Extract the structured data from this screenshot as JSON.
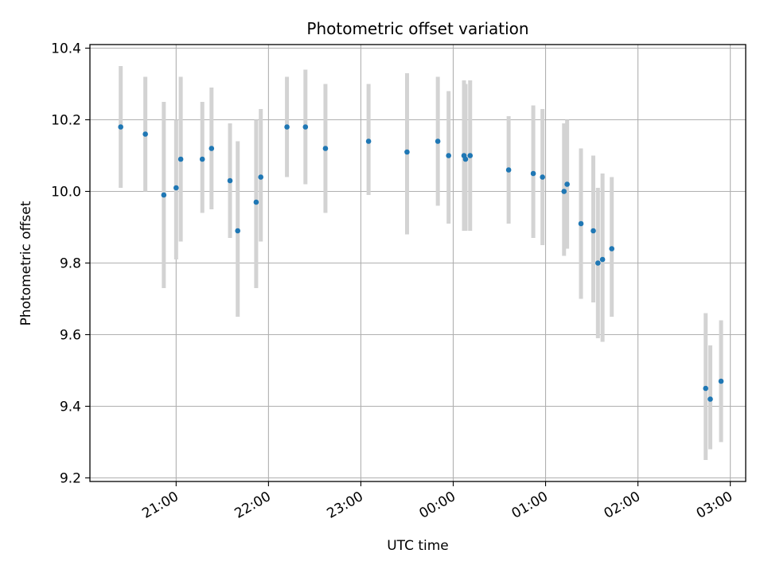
{
  "chart_data": {
    "type": "scatter",
    "title": "Photometric offset variation",
    "xlabel": "UTC time",
    "ylabel": "Photometric offset",
    "x_axis_type": "time",
    "xlim": [
      "20:04",
      "03:10"
    ],
    "ylim": [
      9.19,
      10.41
    ],
    "xticks": [
      {
        "t": "21:00",
        "label": "21:00"
      },
      {
        "t": "22:00",
        "label": "22:00"
      },
      {
        "t": "23:00",
        "label": "23:00"
      },
      {
        "t": "00:00",
        "label": "00:00"
      },
      {
        "t": "01:00",
        "label": "01:00"
      },
      {
        "t": "02:00",
        "label": "02:00"
      },
      {
        "t": "03:00",
        "label": "03:00"
      }
    ],
    "yticks": [
      9.2,
      9.4,
      9.6,
      9.8,
      10.0,
      10.2,
      10.4
    ],
    "ytick_labels": [
      "9.2",
      "9.4",
      "9.6",
      "9.8",
      "10.0",
      "10.2",
      "10.4"
    ],
    "grid": true,
    "marker_color": "#1f77b4",
    "errorbar_color": "#d3d3d3",
    "points": [
      {
        "t": "20:24",
        "y": 10.18,
        "low": 10.01,
        "high": 10.35
      },
      {
        "t": "20:40",
        "y": 10.16,
        "low": 10.0,
        "high": 10.32
      },
      {
        "t": "20:52",
        "y": 9.99,
        "low": 9.73,
        "high": 10.25
      },
      {
        "t": "21:00",
        "y": 10.01,
        "low": 9.81,
        "high": 10.2
      },
      {
        "t": "21:03",
        "y": 10.09,
        "low": 9.86,
        "high": 10.32
      },
      {
        "t": "21:17",
        "y": 10.09,
        "low": 9.94,
        "high": 10.25
      },
      {
        "t": "21:23",
        "y": 10.12,
        "low": 9.95,
        "high": 10.29
      },
      {
        "t": "21:35",
        "y": 10.03,
        "low": 9.87,
        "high": 10.19
      },
      {
        "t": "21:40",
        "y": 9.89,
        "low": 9.65,
        "high": 10.14
      },
      {
        "t": "21:52",
        "y": 9.97,
        "low": 9.73,
        "high": 10.2
      },
      {
        "t": "21:55",
        "y": 10.04,
        "low": 9.86,
        "high": 10.23
      },
      {
        "t": "22:12",
        "y": 10.18,
        "low": 10.04,
        "high": 10.32
      },
      {
        "t": "22:24",
        "y": 10.18,
        "low": 10.02,
        "high": 10.34
      },
      {
        "t": "22:37",
        "y": 10.12,
        "low": 9.94,
        "high": 10.3
      },
      {
        "t": "23:05",
        "y": 10.14,
        "low": 9.99,
        "high": 10.3
      },
      {
        "t": "23:30",
        "y": 10.11,
        "low": 9.88,
        "high": 10.33
      },
      {
        "t": "23:50",
        "y": 10.14,
        "low": 9.96,
        "high": 10.32
      },
      {
        "t": "23:57",
        "y": 10.1,
        "low": 9.91,
        "high": 10.28
      },
      {
        "t": "00:07",
        "y": 10.1,
        "low": 9.89,
        "high": 10.31
      },
      {
        "t": "00:08",
        "y": 10.09,
        "low": 9.89,
        "high": 10.3
      },
      {
        "t": "00:11",
        "y": 10.1,
        "low": 9.89,
        "high": 10.31
      },
      {
        "t": "00:36",
        "y": 10.06,
        "low": 9.91,
        "high": 10.21
      },
      {
        "t": "00:52",
        "y": 10.05,
        "low": 9.87,
        "high": 10.24
      },
      {
        "t": "00:58",
        "y": 10.04,
        "low": 9.85,
        "high": 10.23
      },
      {
        "t": "01:12",
        "y": 10.0,
        "low": 9.82,
        "high": 10.19
      },
      {
        "t": "01:14",
        "y": 10.02,
        "low": 9.84,
        "high": 10.2
      },
      {
        "t": "01:23",
        "y": 9.91,
        "low": 9.7,
        "high": 10.12
      },
      {
        "t": "01:31",
        "y": 9.89,
        "low": 9.69,
        "high": 10.1
      },
      {
        "t": "01:34",
        "y": 9.8,
        "low": 9.59,
        "high": 10.01
      },
      {
        "t": "01:37",
        "y": 9.81,
        "low": 9.58,
        "high": 10.05
      },
      {
        "t": "01:43",
        "y": 9.84,
        "low": 9.65,
        "high": 10.04
      },
      {
        "t": "02:44",
        "y": 9.45,
        "low": 9.25,
        "high": 9.66
      },
      {
        "t": "02:47",
        "y": 9.42,
        "low": 9.28,
        "high": 9.57
      },
      {
        "t": "02:54",
        "y": 9.47,
        "low": 9.3,
        "high": 9.64
      }
    ]
  }
}
